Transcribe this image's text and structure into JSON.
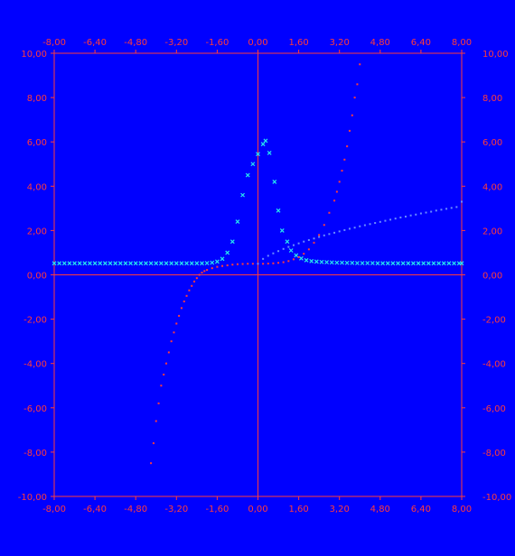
{
  "colors": {
    "background": "#0000ff",
    "axis": "#ff3b3b",
    "series_cyan": "#26e6ee",
    "series_red": "#ff3b3b",
    "series_blue": "#6a8cff"
  },
  "chart_data": {
    "type": "scatter",
    "xlim": [
      -8,
      8
    ],
    "ylim": [
      -10,
      10
    ],
    "x_ticks": [
      "-8,00",
      "-6,40",
      "-4,80",
      "-3,20",
      "-1,60",
      "0,00",
      "1,60",
      "3,20",
      "4,80",
      "6,40",
      "8,00"
    ],
    "y_ticks": [
      "10,00",
      "8,00",
      "6,00",
      "4,00",
      "2,00",
      "0,00",
      "-2,00",
      "-4,00",
      "-6,00",
      "-8,00",
      "-10,00"
    ],
    "grid": false,
    "legend": "none",
    "series": [
      {
        "marker": "x",
        "color": "#26e6ee",
        "points": [
          [
            -8.0,
            0.52
          ],
          [
            -7.8,
            0.52
          ],
          [
            -7.6,
            0.52
          ],
          [
            -7.4,
            0.52
          ],
          [
            -7.2,
            0.52
          ],
          [
            -7.0,
            0.52
          ],
          [
            -6.8,
            0.52
          ],
          [
            -6.6,
            0.52
          ],
          [
            -6.4,
            0.52
          ],
          [
            -6.2,
            0.52
          ],
          [
            -6.0,
            0.52
          ],
          [
            -5.8,
            0.52
          ],
          [
            -5.6,
            0.52
          ],
          [
            -5.4,
            0.52
          ],
          [
            -5.2,
            0.52
          ],
          [
            -5.0,
            0.52
          ],
          [
            -4.8,
            0.52
          ],
          [
            -4.6,
            0.52
          ],
          [
            -4.4,
            0.52
          ],
          [
            -4.2,
            0.52
          ],
          [
            -4.0,
            0.52
          ],
          [
            -3.8,
            0.52
          ],
          [
            -3.6,
            0.52
          ],
          [
            -3.4,
            0.52
          ],
          [
            -3.2,
            0.52
          ],
          [
            -3.0,
            0.52
          ],
          [
            -2.8,
            0.52
          ],
          [
            -2.6,
            0.52
          ],
          [
            -2.4,
            0.52
          ],
          [
            -2.2,
            0.52
          ],
          [
            -2.0,
            0.53
          ],
          [
            -1.8,
            0.55
          ],
          [
            -1.6,
            0.6
          ],
          [
            -1.4,
            0.72
          ],
          [
            -1.2,
            1.0
          ],
          [
            -1.0,
            1.5
          ],
          [
            -0.8,
            2.4
          ],
          [
            -0.6,
            3.6
          ],
          [
            -0.4,
            4.5
          ],
          [
            -0.2,
            5.0
          ],
          [
            0.0,
            5.45
          ],
          [
            0.2,
            5.9
          ],
          [
            0.3,
            6.05
          ],
          [
            0.45,
            5.5
          ],
          [
            0.65,
            4.2
          ],
          [
            0.8,
            2.9
          ],
          [
            0.95,
            2.0
          ],
          [
            1.15,
            1.5
          ],
          [
            1.3,
            1.1
          ],
          [
            1.5,
            0.88
          ],
          [
            1.7,
            0.74
          ],
          [
            1.9,
            0.66
          ],
          [
            2.1,
            0.62
          ],
          [
            2.3,
            0.6
          ],
          [
            2.5,
            0.58
          ],
          [
            2.7,
            0.57
          ],
          [
            2.9,
            0.56
          ],
          [
            3.1,
            0.55
          ],
          [
            3.3,
            0.55
          ],
          [
            3.5,
            0.54
          ],
          [
            3.7,
            0.54
          ],
          [
            3.9,
            0.53
          ],
          [
            4.1,
            0.53
          ],
          [
            4.3,
            0.53
          ],
          [
            4.5,
            0.53
          ],
          [
            4.7,
            0.52
          ],
          [
            4.9,
            0.52
          ],
          [
            5.1,
            0.52
          ],
          [
            5.3,
            0.52
          ],
          [
            5.5,
            0.52
          ],
          [
            5.7,
            0.52
          ],
          [
            5.9,
            0.52
          ],
          [
            6.1,
            0.52
          ],
          [
            6.3,
            0.52
          ],
          [
            6.5,
            0.52
          ],
          [
            6.7,
            0.52
          ],
          [
            6.9,
            0.52
          ],
          [
            7.1,
            0.52
          ],
          [
            7.3,
            0.52
          ],
          [
            7.5,
            0.52
          ],
          [
            7.7,
            0.52
          ],
          [
            7.9,
            0.52
          ],
          [
            8.0,
            0.52
          ]
        ]
      },
      {
        "marker": "dot",
        "color": "#ff3b3b",
        "points": [
          [
            -4.2,
            -8.5
          ],
          [
            -4.1,
            -7.6
          ],
          [
            -4.0,
            -6.6
          ],
          [
            -3.9,
            -5.8
          ],
          [
            -3.8,
            -5.0
          ],
          [
            -3.7,
            -4.5
          ],
          [
            -3.6,
            -4.0
          ],
          [
            -3.5,
            -3.5
          ],
          [
            -3.4,
            -3.0
          ],
          [
            -3.3,
            -2.6
          ],
          [
            -3.2,
            -2.2
          ],
          [
            -3.1,
            -1.85
          ],
          [
            -3.0,
            -1.5
          ],
          [
            -2.9,
            -1.2
          ],
          [
            -2.8,
            -0.95
          ],
          [
            -2.7,
            -0.7
          ],
          [
            -2.6,
            -0.5
          ],
          [
            -2.5,
            -0.3
          ],
          [
            -2.4,
            -0.15
          ],
          [
            -2.3,
            0.0
          ],
          [
            -2.2,
            0.1
          ],
          [
            -2.1,
            0.17
          ],
          [
            -2.0,
            0.22
          ],
          [
            -1.8,
            0.3
          ],
          [
            -1.6,
            0.36
          ],
          [
            -1.4,
            0.4
          ],
          [
            -1.2,
            0.43
          ],
          [
            -1.0,
            0.46
          ],
          [
            -0.8,
            0.48
          ],
          [
            -0.6,
            0.49
          ],
          [
            -0.4,
            0.5
          ],
          [
            -0.2,
            0.5
          ],
          [
            0.0,
            0.5
          ],
          [
            0.2,
            0.5
          ],
          [
            0.4,
            0.51
          ],
          [
            0.6,
            0.52
          ],
          [
            0.8,
            0.54
          ],
          [
            1.0,
            0.57
          ],
          [
            1.2,
            0.62
          ],
          [
            1.4,
            0.7
          ],
          [
            1.6,
            0.8
          ],
          [
            1.8,
            0.95
          ],
          [
            2.0,
            1.15
          ],
          [
            2.2,
            1.45
          ],
          [
            2.4,
            1.8
          ],
          [
            2.6,
            2.25
          ],
          [
            2.8,
            2.8
          ],
          [
            3.0,
            3.35
          ],
          [
            3.1,
            3.75
          ],
          [
            3.2,
            4.2
          ],
          [
            3.3,
            4.7
          ],
          [
            3.4,
            5.2
          ],
          [
            3.5,
            5.8
          ],
          [
            3.6,
            6.5
          ],
          [
            3.7,
            7.2
          ],
          [
            3.8,
            8.0
          ],
          [
            3.9,
            8.6
          ],
          [
            4.0,
            9.5
          ]
        ]
      },
      {
        "marker": "dot",
        "color": "#6a8cff",
        "points": [
          [
            0.0,
            0.5
          ],
          [
            0.2,
            0.72
          ],
          [
            0.4,
            0.86
          ],
          [
            0.6,
            0.97
          ],
          [
            0.8,
            1.07
          ],
          [
            1.0,
            1.17
          ],
          [
            1.2,
            1.26
          ],
          [
            1.4,
            1.34
          ],
          [
            1.6,
            1.42
          ],
          [
            1.8,
            1.5
          ],
          [
            2.0,
            1.57
          ],
          [
            2.2,
            1.64
          ],
          [
            2.4,
            1.71
          ],
          [
            2.6,
            1.78
          ],
          [
            2.8,
            1.84
          ],
          [
            3.0,
            1.9
          ],
          [
            3.2,
            1.96
          ],
          [
            3.4,
            2.02
          ],
          [
            3.6,
            2.08
          ],
          [
            3.8,
            2.13
          ],
          [
            4.0,
            2.19
          ],
          [
            4.2,
            2.24
          ],
          [
            4.4,
            2.29
          ],
          [
            4.6,
            2.34
          ],
          [
            4.8,
            2.39
          ],
          [
            5.0,
            2.44
          ],
          [
            5.2,
            2.49
          ],
          [
            5.4,
            2.54
          ],
          [
            5.6,
            2.59
          ],
          [
            5.8,
            2.63
          ],
          [
            6.0,
            2.68
          ],
          [
            6.2,
            2.72
          ],
          [
            6.4,
            2.77
          ],
          [
            6.6,
            2.81
          ],
          [
            6.8,
            2.85
          ],
          [
            7.0,
            2.9
          ],
          [
            7.2,
            2.94
          ],
          [
            7.4,
            2.98
          ],
          [
            7.6,
            3.02
          ],
          [
            7.8,
            3.06
          ],
          [
            8.0,
            3.3
          ]
        ]
      }
    ]
  }
}
